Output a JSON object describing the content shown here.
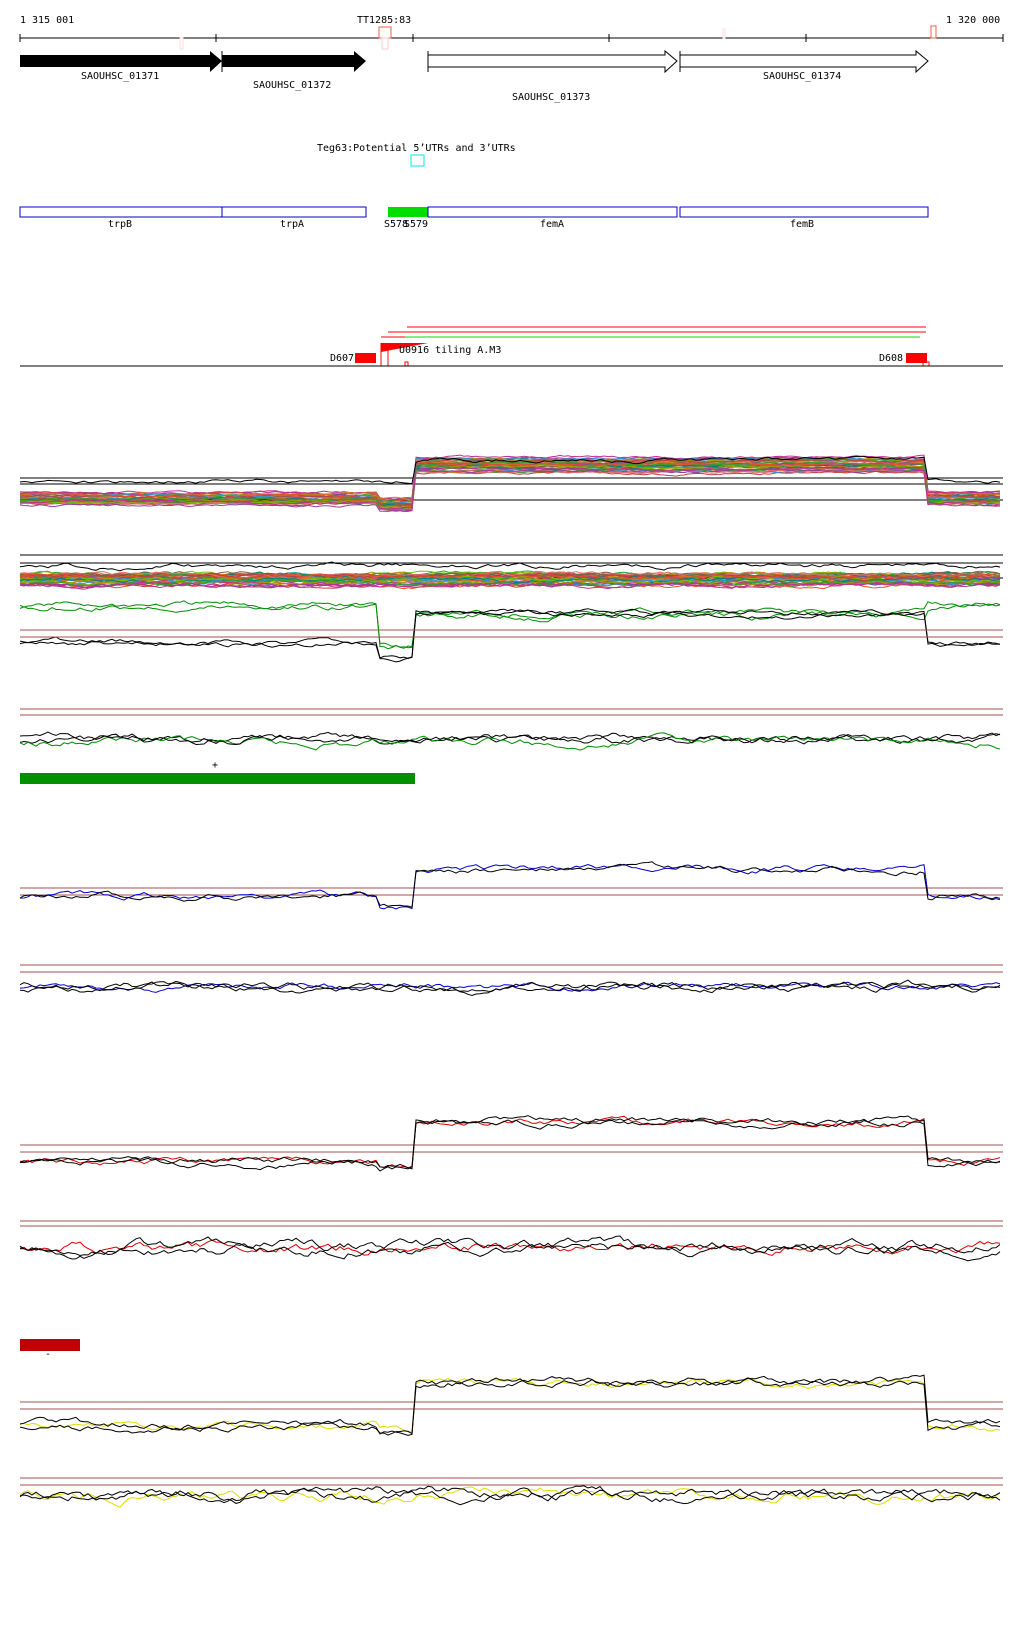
{
  "ruler": {
    "start": "1 315 001",
    "end": "1 320 000",
    "marker": "TT1285:83"
  },
  "genes": [
    {
      "label": "SAOUHSC_01371",
      "strand": "+",
      "filled": true
    },
    {
      "label": "SAOUHSC_01372",
      "strand": "+",
      "filled": true
    },
    {
      "label": "SAOUHSC_01373",
      "strand": "+",
      "filled": false
    },
    {
      "label": "SAOUHSC_01374",
      "strand": "+",
      "filled": false
    }
  ],
  "utr_track": {
    "label": "Teg63:Potential 5’UTRs and 3’UTRs"
  },
  "annotations": [
    {
      "label": "trpB"
    },
    {
      "label": "trpA"
    },
    {
      "label": "S578"
    },
    {
      "label": "S579"
    },
    {
      "label": "femA"
    },
    {
      "label": "femB"
    }
  ],
  "features": {
    "left": "D607",
    "right": "D608",
    "overlap": "U0916 tiling A.M3"
  },
  "marks": {
    "plus": "+",
    "minus": "-"
  },
  "colors": {
    "gene": "#000000",
    "annotation_box": "#0000cc",
    "highlight": "#00dd00",
    "feature": "#ff0000",
    "utr_box": "#00e5ee",
    "green_track": "#008c00",
    "blue_track": "#0000cc",
    "red_track": "#dd0000",
    "yellow_track": "#dddd00",
    "threshold": "#a05050",
    "green_bar": "#009000",
    "red_bar": "#c00000"
  }
}
